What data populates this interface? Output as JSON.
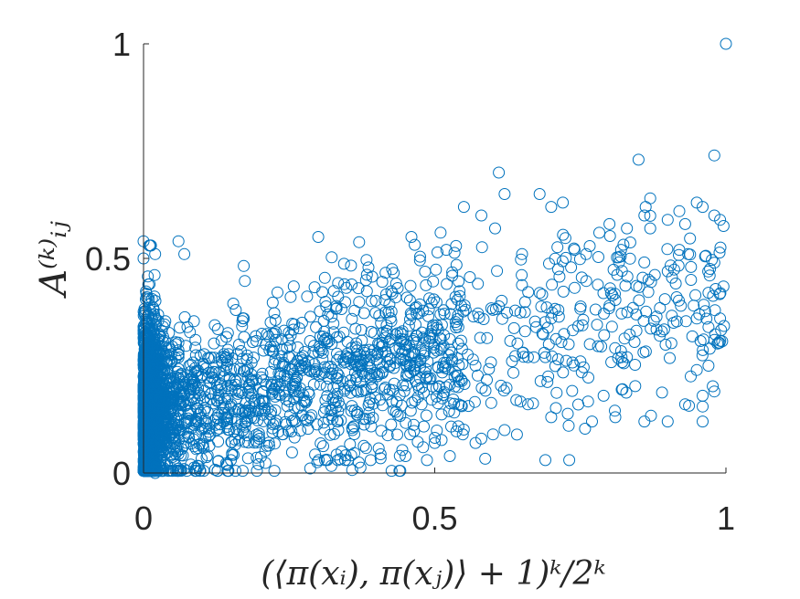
{
  "chart_data": {
    "type": "scatter",
    "xlabel": "(⟨π(xᵢ), π(xⱼ)⟩ + 1)ᵏ/2ᵏ",
    "ylabel": "A⁽ᵏ⁾ᵢⱼ",
    "xlim": [
      0,
      1
    ],
    "ylim": [
      0,
      1
    ],
    "x_ticks": [
      "0",
      "0.5",
      "1"
    ],
    "y_ticks": [
      "0",
      "0.5",
      "1"
    ],
    "grid": false,
    "marker": "open-circle",
    "series_color": "#0072BD",
    "series": [
      {
        "description_points": "approx. 3000 points; dense near x=0 (y 0–0.53), spreading upward as x increases",
        "points": [
          [
            1.0,
            1.0
          ],
          [
            0.98,
            0.74
          ],
          [
            0.85,
            0.73
          ],
          [
            0.61,
            0.7
          ],
          [
            0.62,
            0.65
          ],
          [
            0.68,
            0.65
          ],
          [
            0.72,
            0.63
          ],
          [
            0.55,
            0.62
          ],
          [
            0.7,
            0.62
          ],
          [
            0.87,
            0.64
          ],
          [
            0.95,
            0.63
          ],
          [
            0.98,
            0.6
          ],
          [
            0.96,
            0.62
          ],
          [
            0.92,
            0.61
          ],
          [
            0.58,
            0.6
          ],
          [
            0.86,
            0.6
          ],
          [
            0.99,
            0.59
          ],
          [
            0.9,
            0.59
          ],
          [
            0.8,
            0.58
          ],
          [
            0.83,
            0.57
          ],
          [
            0.87,
            0.57
          ],
          [
            0.93,
            0.58
          ],
          [
            0.51,
            0.56
          ],
          [
            0.46,
            0.55
          ],
          [
            0.3,
            0.55
          ],
          [
            0.06,
            0.54
          ],
          [
            0.0,
            0.54
          ],
          [
            0.01,
            0.53
          ],
          [
            0.0,
            0.5
          ],
          [
            0.02,
            0.51
          ],
          [
            0.07,
            0.51
          ],
          [
            0.52,
            0.52
          ],
          [
            0.82,
            0.52
          ],
          [
            0.92,
            0.52
          ],
          [
            0.65,
            0.51
          ],
          [
            0.74,
            0.52
          ],
          [
            0.76,
            0.51
          ],
          [
            0.98,
            0.49
          ],
          [
            0.94,
            0.48
          ],
          [
            0.9,
            0.47
          ],
          [
            0.94,
            0.45
          ],
          [
            0.97,
            0.42
          ],
          [
            0.6,
            0.38
          ],
          [
            0.7,
            0.36
          ],
          [
            0.8,
            0.39
          ],
          [
            0.91,
            0.35
          ],
          [
            0.95,
            0.36
          ],
          [
            0.99,
            0.36
          ],
          [
            0.97,
            0.34
          ],
          [
            0.98,
            0.31
          ],
          [
            0.89,
            0.33
          ],
          [
            0.73,
            0.3
          ],
          [
            0.66,
            0.27
          ],
          [
            0.83,
            0.27
          ],
          [
            0.97,
            0.25
          ],
          [
            0.75,
            0.26
          ],
          [
            0.95,
            0.24
          ],
          [
            0.57,
            0.25
          ],
          [
            0.69,
            0.27
          ],
          [
            0.54,
            0.2
          ],
          [
            0.64,
            0.17
          ],
          [
            0.66,
            0.16
          ],
          [
            0.79,
            0.18
          ],
          [
            0.96,
            0.18
          ],
          [
            0.98,
            0.19
          ],
          [
            0.93,
            0.16
          ],
          [
            0.81,
            0.13
          ],
          [
            0.77,
            0.12
          ],
          [
            0.86,
            0.12
          ],
          [
            0.9,
            0.12
          ],
          [
            0.96,
            0.12
          ],
          [
            0.7,
            0.13
          ],
          [
            0.73,
            0.11
          ],
          [
            0.62,
            0.1
          ],
          [
            0.6,
            0.09
          ],
          [
            0.58,
            0.08
          ],
          [
            0.57,
            0.07
          ],
          [
            0.69,
            0.03
          ],
          [
            0.39,
            0.03
          ],
          [
            0.44,
            0.04
          ],
          [
            0.34,
            0.05
          ],
          [
            0.48,
            0.06
          ],
          [
            0.5,
            0.07
          ],
          [
            0.09,
            0.01
          ],
          [
            0.06,
            0.01
          ],
          [
            0.04,
            0.02
          ],
          [
            0.02,
            0.0
          ],
          [
            0.15,
            0.03
          ]
        ]
      }
    ]
  }
}
